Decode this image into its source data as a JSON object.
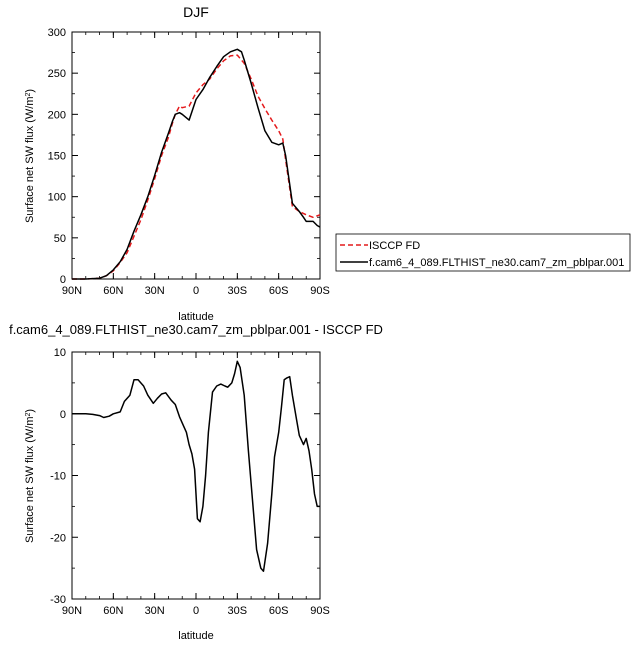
{
  "chart_data": [
    {
      "type": "line",
      "title": "DJF",
      "xlabel": "latitude",
      "ylabel_main": "Surface net SW flux (W/m",
      "ylabel_sup": "2",
      "ylabel_close": ")",
      "xlim": [
        90,
        -90
      ],
      "ylim": [
        0,
        300
      ],
      "xticks": [
        {
          "v": 90,
          "label": "90N"
        },
        {
          "v": 60,
          "label": "60N"
        },
        {
          "v": 30,
          "label": "30N"
        },
        {
          "v": 0,
          "label": "0"
        },
        {
          "v": -30,
          "label": "30S"
        },
        {
          "v": -60,
          "label": "60S"
        },
        {
          "v": -90,
          "label": "90S"
        }
      ],
      "yticks": [
        {
          "v": 0,
          "label": "0"
        },
        {
          "v": 50,
          "label": "50"
        },
        {
          "v": 100,
          "label": "100"
        },
        {
          "v": 150,
          "label": "150"
        },
        {
          "v": 200,
          "label": "200"
        },
        {
          "v": 250,
          "label": "250"
        },
        {
          "v": 300,
          "label": "300"
        }
      ],
      "legend": {
        "placement": "right"
      },
      "series": [
        {
          "name": "ISCCP FD",
          "color": "#e41a1c",
          "dash": "dashed",
          "x": [
            90,
            80,
            70,
            65,
            60,
            55,
            50,
            45,
            40,
            35,
            30,
            25,
            20,
            17,
            15,
            12,
            10,
            5,
            0,
            -5,
            -10,
            -15,
            -20,
            -25,
            -30,
            -35,
            -40,
            -45,
            -50,
            -55,
            -60,
            -63,
            -65,
            -70,
            -75,
            -80,
            -85,
            -90
          ],
          "y": [
            0,
            0,
            1,
            4,
            10,
            20,
            32,
            52,
            72,
            96,
            122,
            150,
            172,
            190,
            200,
            210,
            208,
            210,
            226,
            236,
            243,
            255,
            265,
            271,
            272,
            262,
            243,
            222,
            207,
            193,
            180,
            170,
            145,
            88,
            82,
            78,
            75,
            78
          ]
        },
        {
          "name": "f.cam6_4_089.FLTHIST_ne30.cam7_zm_pblpar.001",
          "color": "#000000",
          "dash": "solid",
          "x": [
            90,
            80,
            70,
            65,
            60,
            55,
            50,
            45,
            40,
            35,
            30,
            25,
            20,
            17,
            15,
            12,
            10,
            5,
            0,
            -5,
            -10,
            -15,
            -20,
            -25,
            -30,
            -33,
            -35,
            -40,
            -45,
            -50,
            -55,
            -60,
            -63,
            -65,
            -70,
            -75,
            -78,
            -80,
            -85,
            -88,
            -90
          ],
          "y": [
            0,
            0,
            1,
            4,
            11,
            21,
            36,
            58,
            78,
            100,
            126,
            154,
            177,
            192,
            200,
            202,
            200,
            193,
            218,
            230,
            245,
            258,
            270,
            276,
            279,
            276,
            266,
            238,
            208,
            180,
            166,
            163,
            165,
            150,
            92,
            82,
            75,
            70,
            70,
            65,
            63
          ]
        }
      ]
    },
    {
      "type": "line",
      "title": "f.cam6_4_089.FLTHIST_ne30.cam7_zm_pblpar.001 - ISCCP FD",
      "xlabel": "latitude",
      "ylabel_main": "Surface net SW flux (W/m",
      "ylabel_sup": "2",
      "ylabel_close": ")",
      "xlim": [
        90,
        -90
      ],
      "ylim": [
        -30,
        10
      ],
      "xticks": [
        {
          "v": 90,
          "label": "90N"
        },
        {
          "v": 60,
          "label": "60N"
        },
        {
          "v": 30,
          "label": "30N"
        },
        {
          "v": 0,
          "label": "0"
        },
        {
          "v": -30,
          "label": "30S"
        },
        {
          "v": -60,
          "label": "60S"
        },
        {
          "v": -90,
          "label": "90S"
        }
      ],
      "yticks": [
        {
          "v": -30,
          "label": "-30"
        },
        {
          "v": -20,
          "label": "-20"
        },
        {
          "v": -10,
          "label": "-10"
        },
        {
          "v": 0,
          "label": "0"
        },
        {
          "v": 10,
          "label": "10"
        }
      ],
      "series": [
        {
          "color": "#000000",
          "dash": "solid",
          "x": [
            90,
            80,
            75,
            70,
            67,
            63,
            60,
            55,
            52,
            48,
            45,
            42,
            38,
            35,
            31,
            28,
            25,
            22,
            18,
            15,
            12,
            9,
            7,
            5,
            3,
            1,
            -1,
            -3,
            -5,
            -7,
            -9,
            -12,
            -15,
            -18,
            -21,
            -23,
            -26,
            -28,
            -30,
            -32,
            -35,
            -38,
            -41,
            -44,
            -47,
            -49,
            -52,
            -55,
            -57,
            -60,
            -62,
            -64,
            -66,
            -68,
            -70,
            -73,
            -75,
            -78,
            -80,
            -82,
            -84,
            -86,
            -88,
            -90
          ],
          "y": [
            0,
            0,
            -0.1,
            -0.3,
            -0.6,
            -0.4,
            0,
            0.3,
            2,
            3,
            5.5,
            5.5,
            4.5,
            3,
            1.7,
            2.5,
            3.2,
            3.4,
            2.2,
            1.5,
            -0.5,
            -2,
            -3,
            -5,
            -6.5,
            -9,
            -17,
            -17.5,
            -15,
            -10,
            -3,
            3.5,
            4.5,
            4.8,
            4.5,
            4.3,
            5,
            6.5,
            8.5,
            7.5,
            3,
            -6,
            -14,
            -22,
            -25,
            -25.5,
            -21,
            -13,
            -7,
            -3,
            1,
            5.5,
            5.8,
            6,
            3,
            -1,
            -3.5,
            -5,
            -4,
            -6,
            -9,
            -13,
            -15,
            -15
          ]
        }
      ]
    }
  ]
}
